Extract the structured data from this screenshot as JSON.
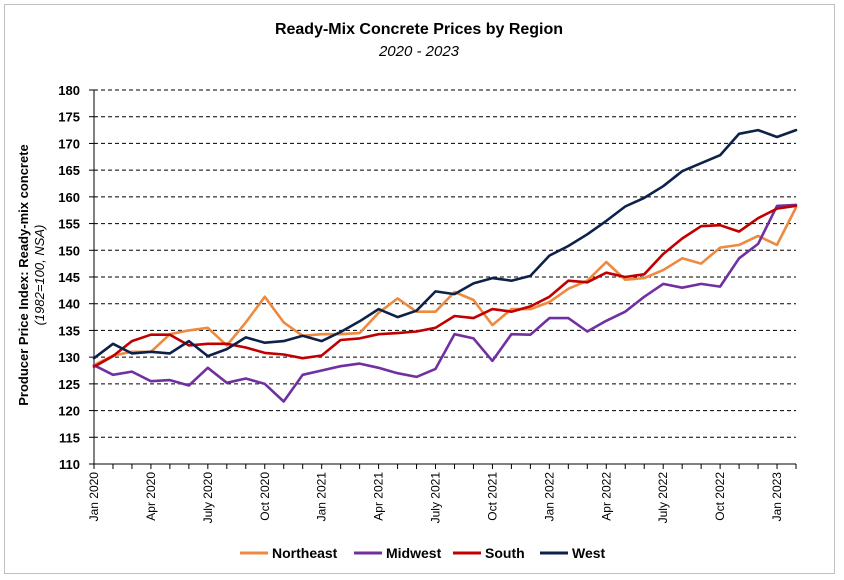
{
  "chart_data": {
    "type": "line",
    "title": "Ready-Mix Concrete Prices by Region",
    "subtitle": "2020 - 2023",
    "ylabel_main": "Producer Price Index: Ready-mix concrete",
    "ylabel_sub": "(1982=100, NSA)",
    "ylim": [
      110,
      180
    ],
    "yticks": [
      110,
      115,
      120,
      125,
      130,
      135,
      140,
      145,
      150,
      155,
      160,
      165,
      170,
      175,
      180
    ],
    "grid": true,
    "legend_position": "bottom",
    "x": [
      "Jan 2020",
      "Feb 2020",
      "Mar 2020",
      "Apr 2020",
      "May 2020",
      "Jun 2020",
      "Jul 2020",
      "Aug 2020",
      "Sep 2020",
      "Oct 2020",
      "Nov 2020",
      "Dec 2020",
      "Jan 2021",
      "Feb 2021",
      "Mar 2021",
      "Apr 2021",
      "May 2021",
      "Jun 2021",
      "Jul 2021",
      "Aug 2021",
      "Sep 2021",
      "Oct 2021",
      "Nov 2021",
      "Dec 2021",
      "Jan 2022",
      "Feb 2022",
      "Mar 2022",
      "Apr 2022",
      "May 2022",
      "Jun 2022",
      "Jul 2022",
      "Aug 2022",
      "Sep 2022",
      "Oct 2022",
      "Nov 2022",
      "Dec 2022",
      "Jan 2023",
      "Feb 2023"
    ],
    "x_tick_labels": [
      {
        "index": 0,
        "label": "Jan 2020"
      },
      {
        "index": 3,
        "label": "Apr 2020"
      },
      {
        "index": 6,
        "label": "July 2020"
      },
      {
        "index": 9,
        "label": "Oct 2020"
      },
      {
        "index": 12,
        "label": "Jan 2021"
      },
      {
        "index": 15,
        "label": "Apr 2021"
      },
      {
        "index": 18,
        "label": "July 2021"
      },
      {
        "index": 21,
        "label": "Oct 2021"
      },
      {
        "index": 24,
        "label": "Jan 2022"
      },
      {
        "index": 27,
        "label": "Apr 2022"
      },
      {
        "index": 30,
        "label": "July 2022"
      },
      {
        "index": 33,
        "label": "Oct 2022"
      },
      {
        "index": 36,
        "label": "Jan 2023"
      }
    ],
    "series": [
      {
        "name": "Northeast",
        "color": "#ED8A3F",
        "values": [
          128.5,
          130.3,
          131.0,
          131.0,
          134.3,
          135.0,
          135.5,
          132.2,
          136.5,
          141.3,
          136.5,
          134.0,
          134.3,
          134.3,
          134.5,
          138.3,
          141.0,
          138.5,
          138.5,
          142.2,
          140.7,
          136.0,
          139.0,
          139.0,
          140.3,
          142.8,
          144.3,
          147.8,
          144.5,
          144.8,
          146.3,
          148.5,
          147.5,
          150.5,
          151.0,
          152.7,
          151.0,
          158.0
        ]
      },
      {
        "name": "Midwest",
        "color": "#7030A0",
        "values": [
          128.5,
          126.7,
          127.3,
          125.5,
          125.7,
          124.7,
          128.0,
          125.2,
          126.0,
          125.0,
          121.7,
          126.7,
          127.5,
          128.3,
          128.8,
          128.0,
          127.0,
          126.3,
          127.8,
          134.3,
          133.5,
          129.3,
          134.3,
          134.2,
          137.3,
          137.3,
          134.8,
          136.8,
          138.5,
          141.3,
          143.7,
          143.0,
          143.7,
          143.2,
          148.5,
          151.2,
          158.3,
          158.5
        ]
      },
      {
        "name": "South",
        "color": "#C00000",
        "values": [
          128.2,
          130.2,
          133.0,
          134.2,
          134.2,
          132.2,
          132.5,
          132.5,
          131.8,
          130.8,
          130.5,
          129.8,
          130.3,
          133.2,
          133.5,
          134.3,
          134.5,
          134.8,
          135.5,
          137.7,
          137.3,
          139.0,
          138.5,
          139.5,
          141.3,
          144.3,
          144.0,
          145.8,
          145.0,
          145.5,
          149.3,
          152.2,
          154.5,
          154.7,
          153.5,
          156.0,
          157.8,
          158.3
        ]
      },
      {
        "name": "West",
        "color": "#0D2149",
        "values": [
          129.8,
          132.5,
          130.7,
          131.0,
          130.7,
          133.0,
          130.2,
          131.5,
          133.7,
          132.7,
          133.0,
          134.0,
          133.0,
          134.7,
          136.7,
          139.0,
          137.5,
          138.7,
          142.3,
          141.8,
          143.8,
          144.8,
          144.3,
          145.2,
          149.0,
          150.8,
          153.0,
          155.5,
          158.2,
          159.8,
          162.0,
          164.8,
          166.3,
          167.8,
          171.8,
          172.5,
          171.2,
          172.5
        ]
      }
    ]
  }
}
